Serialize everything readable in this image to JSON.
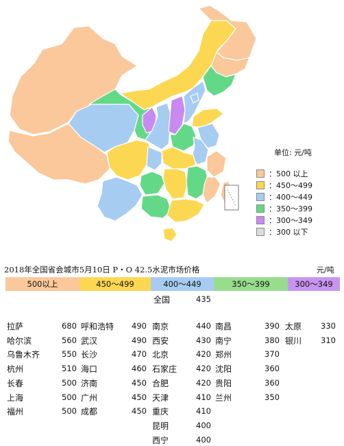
{
  "legend": {
    "unit": "单位: 元/吨",
    "items": [
      {
        "label": "500 以上",
        "color": "#FAC89A"
      },
      {
        "label": "450～499",
        "color": "#FCD751"
      },
      {
        "label": "400～449",
        "color": "#A6CCF2"
      },
      {
        "label": "350～399",
        "color": "#63D987"
      },
      {
        "label": "300～349",
        "color": "#C88AF2"
      },
      {
        "label": "300 以下",
        "color": "#DCDCDC"
      }
    ]
  },
  "table": {
    "title": "2018年全国省会城市5月10日 P・O 42.5水泥市场价格",
    "unit": "元/吨",
    "bands": [
      {
        "label": "500以上",
        "color": "#FAC89A"
      },
      {
        "label": "450～499",
        "color": "#FCD751"
      },
      {
        "label": "400～449",
        "color": "#A6CCF2"
      },
      {
        "label": "350～399",
        "color": "#98DC8E"
      },
      {
        "label": "300～349",
        "color": "#C994F0"
      }
    ],
    "national": {
      "name": "全国",
      "value": "435"
    },
    "columns": [
      [
        {
          "name": "拉萨",
          "value": "680"
        },
        {
          "name": "哈尔滨",
          "value": "560"
        },
        {
          "name": "乌鲁木齐",
          "value": "550"
        },
        {
          "name": "杭州",
          "value": "510"
        },
        {
          "name": "长春",
          "value": "500"
        },
        {
          "name": "上海",
          "value": "500"
        },
        {
          "name": "福州",
          "value": "500"
        }
      ],
      [
        {
          "name": "呼和浩特",
          "value": "490"
        },
        {
          "name": "武汉",
          "value": "490"
        },
        {
          "name": "长沙",
          "value": "470"
        },
        {
          "name": "海口",
          "value": "460"
        },
        {
          "name": "济南",
          "value": "450"
        },
        {
          "name": "广州",
          "value": "450"
        },
        {
          "name": "成都",
          "value": "450"
        }
      ],
      [
        {
          "name": "南京",
          "value": "440"
        },
        {
          "name": "西安",
          "value": "430"
        },
        {
          "name": "北京",
          "value": "420"
        },
        {
          "name": "石家庄",
          "value": "420"
        },
        {
          "name": "合肥",
          "value": "420"
        },
        {
          "name": "天津",
          "value": "410"
        },
        {
          "name": "重庆",
          "value": "410"
        },
        {
          "name": "昆明",
          "value": "400"
        },
        {
          "name": "西宁",
          "value": "400"
        }
      ],
      [
        {
          "name": "南昌",
          "value": "390"
        },
        {
          "name": "南宁",
          "value": "380"
        },
        {
          "name": "郑州",
          "value": "370"
        },
        {
          "name": "沈阳",
          "value": "360"
        },
        {
          "name": "贵阳",
          "value": "360"
        },
        {
          "name": "兰州",
          "value": "350"
        }
      ],
      [
        {
          "name": "太原",
          "value": "330"
        },
        {
          "name": "银川",
          "value": "310"
        }
      ]
    ]
  }
}
